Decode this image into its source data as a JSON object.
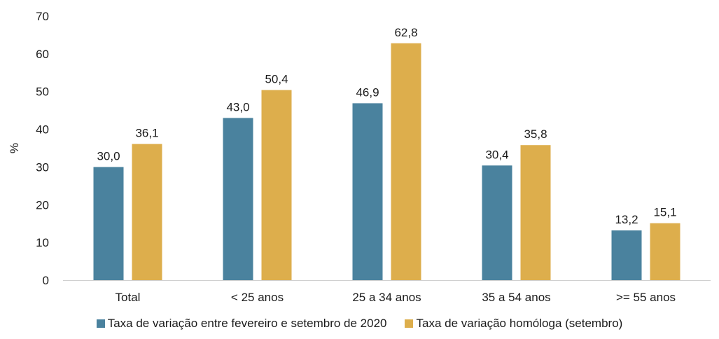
{
  "chart_data": {
    "type": "bar",
    "categories": [
      "Total",
      "< 25 anos",
      "25 a 34 anos",
      "35 a 54 anos",
      ">= 55 anos"
    ],
    "series": [
      {
        "name": "Taxa de variação entre fevereiro e setembro de 2020",
        "values": [
          30.0,
          43.0,
          46.9,
          30.4,
          13.2
        ],
        "labels": [
          "30,0",
          "43,0",
          "46,9",
          "30,4",
          "13,2"
        ],
        "color": "#4a829e"
      },
      {
        "name": "Taxa de variação homóloga (setembro)",
        "values": [
          36.1,
          50.4,
          62.8,
          35.8,
          15.1
        ],
        "labels": [
          "36,1",
          "50,4",
          "62,8",
          "35,8",
          "15,1"
        ],
        "color": "#ddae4c"
      }
    ],
    "ylabel": "%",
    "ylim": [
      0,
      70
    ],
    "yticks": [
      0,
      10,
      20,
      30,
      40,
      50,
      60,
      70
    ],
    "grid": false,
    "legend_position": "bottom"
  }
}
